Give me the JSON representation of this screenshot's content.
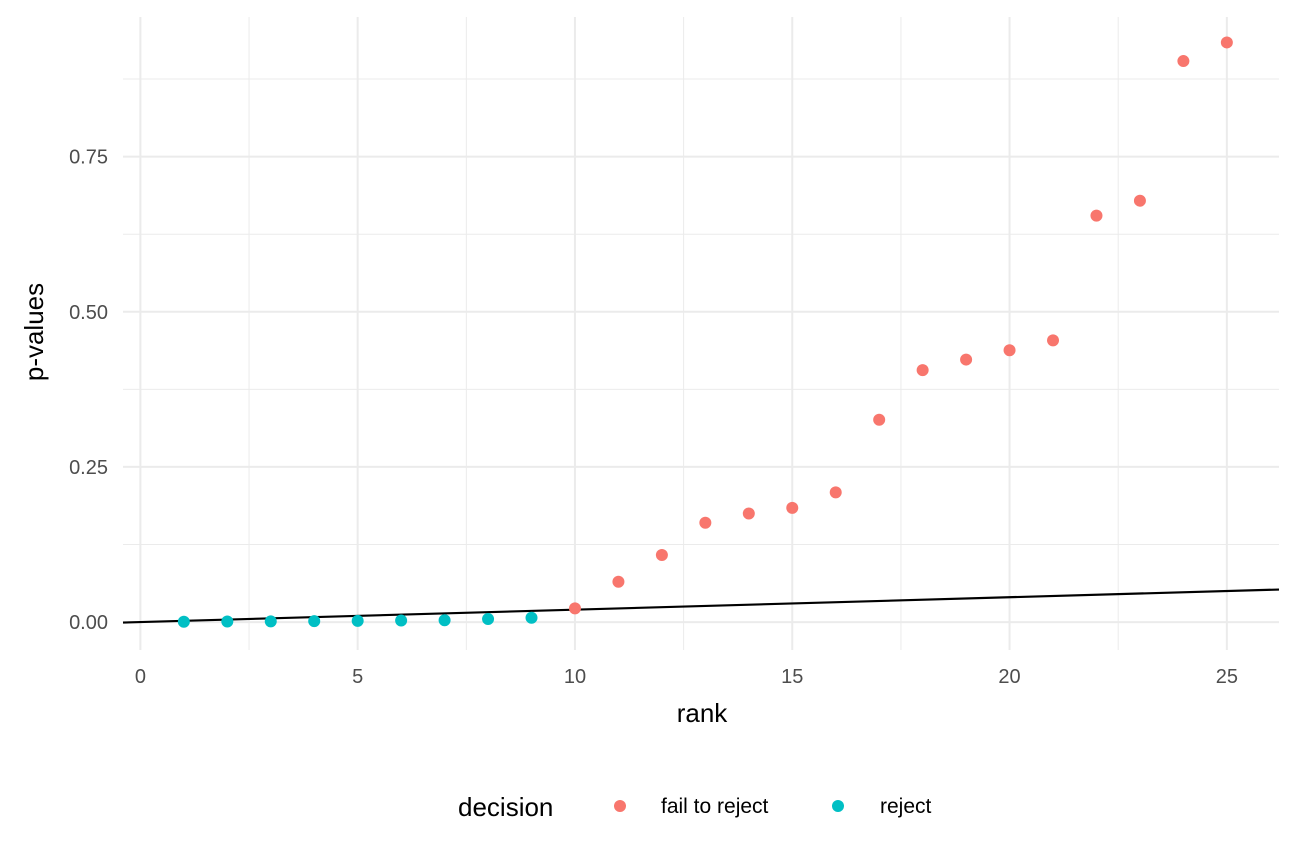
{
  "chart_data": {
    "type": "scatter",
    "xlabel": "rank",
    "ylabel": "p-values",
    "xlim": [
      -0.4,
      26.2
    ],
    "ylim": [
      -0.045,
      0.975
    ],
    "x_ticks": [
      0,
      5,
      10,
      15,
      20,
      25
    ],
    "x_tick_labels": [
      "0",
      "5",
      "10",
      "15",
      "20",
      "25"
    ],
    "y_ticks": [
      0,
      0.25,
      0.5,
      0.75
    ],
    "y_tick_labels": [
      "0.00",
      "0.25",
      "0.50",
      "0.75"
    ],
    "x_minor_ticks": [
      2.5,
      7.5,
      12.5,
      17.5,
      22.5
    ],
    "y_minor_ticks": [
      0.125,
      0.375,
      0.625,
      0.875
    ],
    "grid": true,
    "legend": {
      "title": "decision",
      "position": "bottom",
      "entries": [
        {
          "label": "fail to reject",
          "color": "#F8766D"
        },
        {
          "label": "reject",
          "color": "#00BFC4"
        }
      ]
    },
    "series": [
      {
        "name": "fail to reject",
        "color": "#F8766D",
        "x": [
          10,
          11,
          12,
          13,
          14,
          15,
          16,
          17,
          18,
          19,
          20,
          21,
          22,
          23,
          24,
          25
        ],
        "y": [
          0.022,
          0.065,
          0.108,
          0.16,
          0.175,
          0.184,
          0.209,
          0.326,
          0.406,
          0.423,
          0.438,
          0.454,
          0.655,
          0.679,
          0.904,
          0.934
        ]
      },
      {
        "name": "reject",
        "color": "#00BFC4",
        "x": [
          1,
          2,
          3,
          4,
          5,
          6,
          7,
          8,
          9
        ],
        "y": [
          0.0005,
          0.001,
          0.0012,
          0.0015,
          0.002,
          0.0025,
          0.003,
          0.005,
          0.007
        ]
      }
    ],
    "reference_line": {
      "color": "#000000",
      "x": [
        -0.4,
        26.2
      ],
      "y": [
        -0.0008,
        0.0524
      ]
    }
  }
}
